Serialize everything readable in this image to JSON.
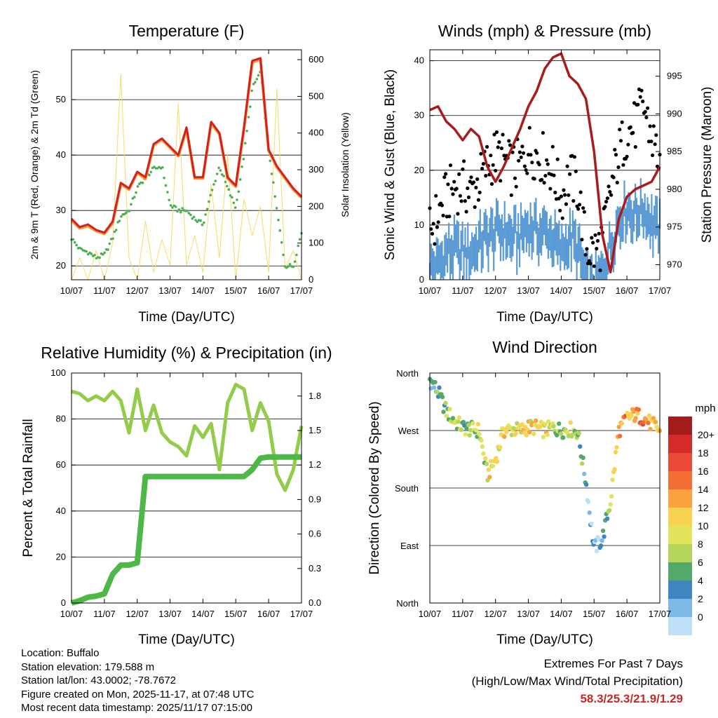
{
  "colors": {
    "temp2m": "#d42020",
    "temp9m": "#f39a35",
    "dewpoint": "#4caf50",
    "solar": "#f5dd66",
    "gust": "#000000",
    "wind": "#5b9bd5",
    "pressure": "#a81c1c",
    "rh": "#93cc4a",
    "precip": "#4db848",
    "extremes": "#c62828"
  },
  "x_ticks": [
    "10/07",
    "11/07",
    "12/07",
    "13/07",
    "14/07",
    "15/07",
    "16/07",
    "17/07"
  ],
  "chart_data": [
    {
      "type": "line",
      "title": "Temperature (F)",
      "xlabel": "Time (Day/UTC)",
      "ylabel": "2m & 9m T (Red, Orange) & 2m Td (Green)",
      "y2label": "Solar Insolation (Yellow)",
      "xlim": [
        0,
        7
      ],
      "ylim": [
        17.5,
        59
      ],
      "yticks": [
        20,
        30,
        40,
        50
      ],
      "y2lim": [
        0,
        627
      ],
      "y2ticks": [
        0,
        100,
        200,
        300,
        400,
        500,
        600
      ],
      "x": [
        0,
        0.25,
        0.5,
        0.75,
        1,
        1.25,
        1.5,
        1.75,
        2,
        2.25,
        2.5,
        2.75,
        3,
        3.25,
        3.5,
        3.75,
        4,
        4.25,
        4.5,
        4.75,
        5,
        5.25,
        5.5,
        5.75,
        6,
        6.25,
        6.5,
        6.75,
        7
      ],
      "series": [
        {
          "name": "2m T",
          "values": [
            28.5,
            27,
            27.5,
            26.5,
            26,
            28,
            35,
            34,
            37,
            36,
            42,
            43,
            41.5,
            40,
            45,
            36,
            36,
            46,
            44,
            36,
            34.5,
            45,
            57,
            57.5,
            41,
            38,
            36,
            34,
            32.5
          ]
        },
        {
          "name": "9m T",
          "values": [
            28.2,
            26.8,
            27.2,
            26.3,
            25.8,
            27.7,
            34.8,
            33.8,
            36.8,
            35.7,
            41.8,
            42.8,
            41.3,
            39.8,
            44.7,
            35.8,
            35.8,
            45.7,
            43.8,
            35.8,
            34.3,
            44.8,
            56.7,
            57.3,
            40.8,
            37.8,
            35.8,
            33.8,
            32.3
          ]
        },
        {
          "name": "2m Td",
          "values": [
            25,
            23,
            22.5,
            21.5,
            22,
            25,
            29,
            30,
            34,
            36,
            37.5,
            38,
            31,
            30,
            30,
            28.5,
            27.5,
            33,
            38,
            34,
            30.5,
            40,
            52,
            55,
            41,
            30,
            20,
            20,
            26
          ]
        },
        {
          "name": "Solar Insolation",
          "axis": "y2",
          "values": [
            0,
            60,
            0,
            80,
            0,
            100,
            560,
            60,
            0,
            160,
            20,
            110,
            40,
            480,
            40,
            120,
            20,
            260,
            60,
            340,
            0,
            220,
            120,
            200,
            20,
            520,
            30,
            80,
            0
          ]
        }
      ]
    },
    {
      "type": "scatter",
      "title": "Winds (mph) & Pressure (mb)",
      "xlabel": "Time (Day/UTC)",
      "ylabel": "Sonic Wind & Gust (Blue, Black)",
      "y2label": "Station Pressure (Maroon)",
      "xlim": [
        0,
        7
      ],
      "ylim": [
        0,
        42
      ],
      "yticks": [
        0,
        10,
        20,
        30,
        40
      ],
      "y2lim": [
        968,
        998.5
      ],
      "y2ticks": [
        970,
        975,
        980,
        985,
        990,
        995
      ],
      "x": [
        0,
        0.25,
        0.5,
        0.75,
        1,
        1.25,
        1.5,
        1.75,
        2,
        2.25,
        2.5,
        2.75,
        3,
        3.25,
        3.5,
        3.75,
        4,
        4.25,
        4.5,
        4.75,
        5,
        5.25,
        5.5,
        5.75,
        6,
        6.25,
        6.5,
        6.75,
        7
      ],
      "series": [
        {
          "name": "Wind",
          "values": [
            5,
            6,
            8,
            9,
            8,
            8,
            10,
            11,
            12,
            12,
            11,
            11,
            13,
            12,
            12,
            11,
            8,
            11,
            9,
            3,
            2,
            4,
            9,
            14,
            16,
            15,
            16,
            14,
            12
          ]
        },
        {
          "name": "Gust",
          "values": [
            9,
            12,
            15,
            17,
            17,
            16,
            18,
            21,
            23,
            22,
            20,
            21,
            24,
            23,
            22,
            20,
            15,
            19,
            17,
            6,
            5,
            7,
            16,
            23,
            27,
            28,
            32,
            26,
            22
          ]
        },
        {
          "name": "Pressure",
          "axis": "y2",
          "values": [
            990.5,
            991,
            989,
            988,
            986.5,
            988,
            987,
            983,
            981,
            983,
            985.5,
            988,
            991,
            993,
            996,
            997.5,
            998,
            995,
            994,
            992,
            985,
            974,
            969,
            976,
            979,
            980,
            980.5,
            981,
            983
          ]
        }
      ]
    },
    {
      "type": "line",
      "title": "Relative Humidity (%) & Precipitation (in)",
      "xlabel": "Time (Day/UTC)",
      "ylabel": "Percent & Total Rainfall",
      "xlim": [
        0,
        7
      ],
      "ylim": [
        0,
        100
      ],
      "yticks": [
        0,
        20,
        40,
        60,
        80,
        100
      ],
      "y2lim": [
        0,
        2.0
      ],
      "y2ticks": [
        0.0,
        0.3,
        0.6,
        0.9,
        1.2,
        1.5,
        1.8
      ],
      "y2ticklabels": [
        "0.0",
        "0.3",
        "0.6",
        "0.9",
        "1.2",
        "1.5",
        "1.8"
      ],
      "x": [
        0,
        0.25,
        0.5,
        0.75,
        1,
        1.25,
        1.5,
        1.75,
        2,
        2.25,
        2.5,
        2.75,
        3,
        3.25,
        3.5,
        3.75,
        4,
        4.25,
        4.5,
        4.75,
        5,
        5.25,
        5.5,
        5.75,
        6,
        6.25,
        6.5,
        6.75,
        7
      ],
      "series": [
        {
          "name": "Relative Humidity",
          "values": [
            92,
            91,
            88,
            90,
            88,
            92,
            88,
            74,
            93,
            75,
            86,
            74,
            70,
            68,
            64,
            77,
            72,
            78,
            58,
            87,
            95,
            93,
            75,
            87,
            79,
            56,
            49,
            58,
            77
          ]
        },
        {
          "name": "Total Precipitation",
          "axis": "y2",
          "values": [
            0,
            0.02,
            0.05,
            0.06,
            0.08,
            0.25,
            0.33,
            0.33,
            0.35,
            1.1,
            1.1,
            1.1,
            1.1,
            1.1,
            1.1,
            1.1,
            1.1,
            1.1,
            1.1,
            1.1,
            1.1,
            1.1,
            1.16,
            1.26,
            1.27,
            1.27,
            1.27,
            1.27,
            1.27
          ]
        }
      ]
    },
    {
      "type": "scatter",
      "title": "Wind Direction",
      "xlabel": "Time (Day/UTC)",
      "ylabel": "Direction (Colored By Speed)",
      "xlim": [
        0,
        7
      ],
      "yticks": [
        "North",
        "West",
        "South",
        "East",
        "North"
      ],
      "ydirections_deg": [
        360,
        270,
        180,
        90,
        0
      ],
      "x": [
        0,
        0.25,
        0.5,
        0.75,
        1,
        1.25,
        1.5,
        1.75,
        2,
        2.25,
        2.5,
        2.75,
        3,
        3.25,
        3.5,
        3.75,
        4,
        4.25,
        4.5,
        4.75,
        5,
        5.25,
        5.5,
        5.75,
        6,
        6.25,
        6.5,
        6.75,
        7
      ],
      "series": [
        {
          "name": "Direction (deg)",
          "values": [
            350,
            330,
            300,
            285,
            275,
            272,
            270,
            200,
            225,
            270,
            272,
            270,
            275,
            275,
            270,
            275,
            270,
            272,
            268,
            190,
            85,
            100,
            160,
            270,
            290,
            295,
            290,
            280,
            270
          ]
        },
        {
          "name": "Speed (mph)",
          "values": [
            5,
            6,
            8,
            9,
            8,
            8,
            10,
            11,
            12,
            12,
            11,
            11,
            13,
            12,
            12,
            11,
            8,
            11,
            9,
            3,
            2,
            4,
            9,
            14,
            16,
            15,
            16,
            14,
            12
          ]
        }
      ],
      "colorbar_title": "mph",
      "colorbar_labels": [
        "20+",
        "18",
        "16",
        "14",
        "12",
        "10",
        "8",
        "6",
        "4",
        "2",
        "0"
      ],
      "colorbar_colors": [
        "#a31b1b",
        "#d42a2a",
        "#ea4a35",
        "#f36e33",
        "#f9a23e",
        "#f8d352",
        "#e2e25b",
        "#b4d65a",
        "#54a86a",
        "#3f86c1",
        "#7eb8e5",
        "#bfe1f7"
      ]
    }
  ],
  "info": {
    "location": "Location: Buffalo",
    "elevation": "Station elevation: 179.588 m",
    "latlon": "Station lat/lon: 43.0002; -78.7672",
    "created": "Figure created on Mon, 2025-11-17, at 07:48 UTC",
    "recent": "Most recent data timestamp: 2025/11/17 07:15:00"
  },
  "extremes": {
    "title": "Extremes For Past 7 Days",
    "subtitle": "(High/Low/Max Wind/Total Precipitation)",
    "values": "58.3/25.3/21.9/1.29"
  }
}
